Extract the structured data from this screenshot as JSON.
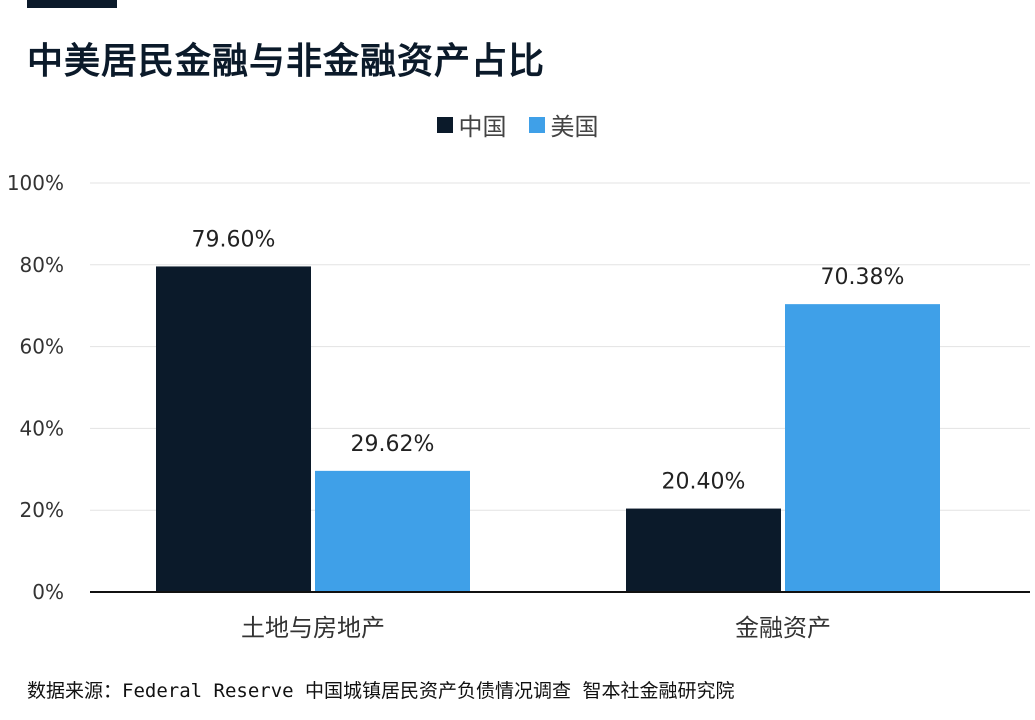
{
  "colors": {
    "accent": "#0b1a2a",
    "china": "#0b1a2a",
    "usa": "#3fa0e8"
  },
  "source": "数据来源：Federal Reserve 中国城镇居民资产负债情况调查 智本社金融研究院",
  "chart_data": {
    "type": "bar",
    "title": "中美居民金融与非金融资产占比",
    "categories": [
      "土地与房地产",
      "金融资产"
    ],
    "series": [
      {
        "name": "中国",
        "values": [
          79.6,
          20.4
        ],
        "labels": [
          "79.60%",
          "20.40%"
        ],
        "color": "#0b1a2a"
      },
      {
        "name": "美国",
        "values": [
          29.62,
          70.38
        ],
        "labels": [
          "29.62%",
          "70.38%"
        ],
        "color": "#3fa0e8"
      }
    ],
    "ylim": [
      0,
      100
    ],
    "yticks": [
      "0%",
      "20%",
      "40%",
      "60%",
      "80%",
      "100%"
    ],
    "xlabel": "",
    "ylabel": "",
    "legend": "top-center",
    "grid": true
  }
}
